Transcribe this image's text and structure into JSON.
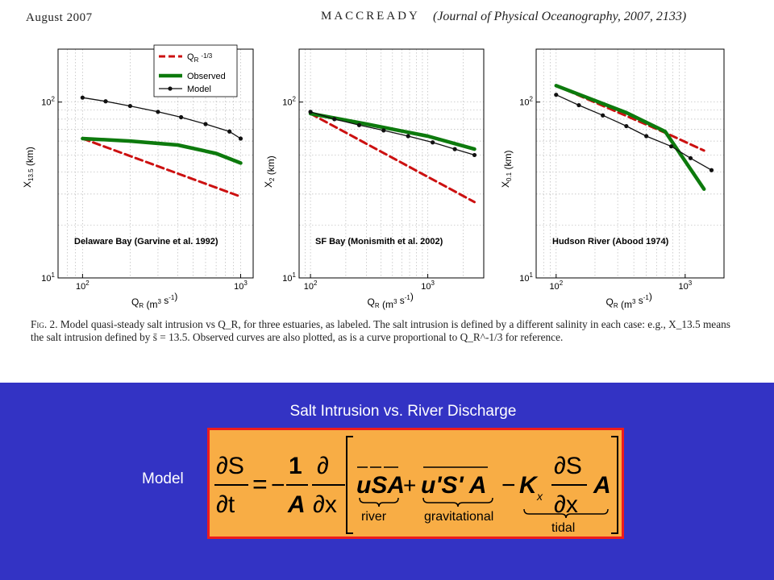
{
  "header": {
    "month_year": "August 2007",
    "author": "MACCREADY",
    "citation": "(Journal of Physical Oceanography, 2007, 2133)"
  },
  "colors": {
    "ref_line": "#cc1010",
    "observed": "#0d7a0d",
    "model": "#111111",
    "bottom_bg": "#3333c4",
    "eq_box_bg": "#f8ad45",
    "eq_box_border": "#ee1c1c"
  },
  "legend": {
    "ref": "Q_R^-1/3",
    "observed": "Observed",
    "model": "Model"
  },
  "chart_data": [
    {
      "type": "line",
      "xscale": "log",
      "yscale": "log",
      "xlim": [
        70,
        1200
      ],
      "ylim": [
        10,
        200
      ],
      "xlabel": "Q_R (m^3 s^-1)",
      "ylabel": "X_13.5 (km)",
      "annotation": "Delaware Bay (Garvine et al. 1992)",
      "legend_position": "top-right",
      "series": [
        {
          "name": "Q_R^-1/3",
          "x": [
            100,
            1000
          ],
          "y": [
            62,
            29
          ]
        },
        {
          "name": "Observed",
          "x": [
            100,
            200,
            400,
            700,
            1000
          ],
          "y": [
            62,
            60,
            57,
            51,
            45
          ]
        },
        {
          "name": "Model",
          "x": [
            100,
            140,
            200,
            300,
            420,
            600,
            850,
            1000
          ],
          "y": [
            106,
            101,
            95,
            88,
            82,
            75,
            68,
            62
          ]
        }
      ],
      "xticks": [
        {
          "v": 100,
          "label": "10^2"
        },
        {
          "v": 1000,
          "label": "10^3"
        }
      ],
      "yticks": [
        {
          "v": 10,
          "label": "10^1"
        },
        {
          "v": 100,
          "label": "10^2"
        }
      ]
    },
    {
      "type": "line",
      "xscale": "log",
      "yscale": "log",
      "xlim": [
        80,
        3000
      ],
      "ylim": [
        10,
        200
      ],
      "xlabel": "Q_R (m^3 s^-1)",
      "ylabel": "X_2 (km)",
      "annotation": "SF Bay (Monismith et al. 2002)",
      "series": [
        {
          "name": "Q_R^-1/3",
          "x": [
            100,
            2500
          ],
          "y": [
            86,
            27
          ]
        },
        {
          "name": "Observed",
          "x": [
            100,
            300,
            1000,
            2500
          ],
          "y": [
            86,
            75,
            64,
            54
          ]
        },
        {
          "name": "Model",
          "x": [
            100,
            160,
            260,
            420,
            680,
            1100,
            1700,
            2500
          ],
          "y": [
            88,
            80,
            74,
            69,
            64,
            59,
            54,
            50
          ]
        }
      ],
      "xticks": [
        {
          "v": 100,
          "label": "10^2"
        },
        {
          "v": 1000,
          "label": "10^3"
        }
      ],
      "yticks": [
        {
          "v": 10,
          "label": "10^1"
        },
        {
          "v": 100,
          "label": "10^2"
        }
      ]
    },
    {
      "type": "line",
      "xscale": "log",
      "yscale": "log",
      "xlim": [
        70,
        2000
      ],
      "ylim": [
        10,
        200
      ],
      "xlabel": "Q_R (m^3 s^-1)",
      "ylabel": "X_0.1 (km)",
      "annotation": "Hudson River (Abood 1974)",
      "series": [
        {
          "name": "Q_R^-1/3",
          "x": [
            100,
            700,
            1400
          ],
          "y": [
            124,
            67,
            53
          ]
        },
        {
          "name": "Observed",
          "x": [
            100,
            350,
            700,
            1400
          ],
          "y": [
            124,
            87,
            68,
            32
          ]
        },
        {
          "name": "Model",
          "x": [
            100,
            150,
            230,
            350,
            500,
            780,
            1100,
            1600
          ],
          "y": [
            110,
            96,
            84,
            73,
            64,
            56,
            48,
            41
          ]
        }
      ],
      "xticks": [
        {
          "v": 100,
          "label": "10^2"
        },
        {
          "v": 1000,
          "label": "10^3"
        }
      ],
      "yticks": [
        {
          "v": 10,
          "label": "10^1"
        },
        {
          "v": 100,
          "label": "10^2"
        }
      ]
    }
  ],
  "caption": {
    "fig_label": "Fig. 2.",
    "text": "Model quasi-steady salt intrusion vs Q_R, for three estuaries, as labeled. The salt intrusion is defined by a different salinity in each case: e.g., X_13.5 means the salt intrusion defined by s̄ = 13.5. Observed curves are also plotted, as is a curve proportional to Q_R^-1/3 for reference."
  },
  "slide": {
    "title": "Salt Intrusion vs. River Discharge",
    "model_label": "Model",
    "labels": {
      "river": "river",
      "gravitational": "gravitational",
      "tidal": "tidal"
    }
  }
}
